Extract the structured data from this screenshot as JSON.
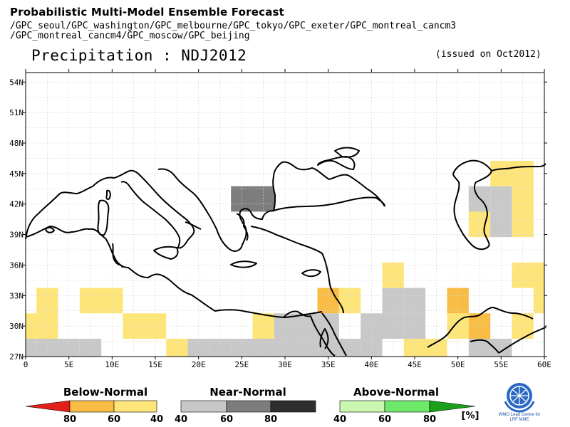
{
  "header": {
    "title": "Probabilistic Multi-Model Ensemble Forecast",
    "models_line1": "/GPC_seoul/GPC_washington/GPC_melbourne/GPC_tokyo/GPC_exeter/GPC_montreal_cancm3",
    "models_line2": "/GPC_montreal_cancm4/GPC_moscow/GPC_beijing",
    "variable": "Precipitation : NDJ2012",
    "issued": "(issued on Oct2012)"
  },
  "chart_data": {
    "type": "heatmap",
    "xlim": [
      0,
      60
    ],
    "ylim": [
      27,
      55
    ],
    "x_ticks": [
      "0",
      "5E",
      "10E",
      "15E",
      "20E",
      "25E",
      "30E",
      "35E",
      "40E",
      "45E",
      "50E",
      "55E",
      "60E"
    ],
    "y_ticks": [
      "27N",
      "30N",
      "33N",
      "36N",
      "39N",
      "42N",
      "45N",
      "48N",
      "51N",
      "54N"
    ],
    "grid": true,
    "cell_size_deg": 2.5,
    "cells": [
      {
        "lon": 0,
        "lat": 27.5,
        "cat": "near_40"
      },
      {
        "lon": 2.5,
        "lat": 27.5,
        "cat": "near_40"
      },
      {
        "lon": 5,
        "lat": 27.5,
        "cat": "near_40"
      },
      {
        "lon": 7.5,
        "lat": 27.5,
        "cat": "near_40"
      },
      {
        "lon": 0,
        "lat": 30,
        "cat": "below_40"
      },
      {
        "lon": 2.5,
        "lat": 30,
        "cat": "below_40"
      },
      {
        "lon": 2.5,
        "lat": 32.5,
        "cat": "below_40"
      },
      {
        "lon": 7.5,
        "lat": 32.5,
        "cat": "below_40"
      },
      {
        "lon": 10,
        "lat": 32.5,
        "cat": "below_40"
      },
      {
        "lon": 12.5,
        "lat": 30,
        "cat": "below_40"
      },
      {
        "lon": 15,
        "lat": 30,
        "cat": "below_40"
      },
      {
        "lon": 17.5,
        "lat": 27.5,
        "cat": "below_40"
      },
      {
        "lon": 20,
        "lat": 27.5,
        "cat": "near_40"
      },
      {
        "lon": 22.5,
        "lat": 27.5,
        "cat": "near_40"
      },
      {
        "lon": 25,
        "lat": 27.5,
        "cat": "near_40"
      },
      {
        "lon": 27.5,
        "lat": 27.5,
        "cat": "near_40"
      },
      {
        "lon": 30,
        "lat": 27.5,
        "cat": "near_40"
      },
      {
        "lon": 32.5,
        "lat": 27.5,
        "cat": "near_40"
      },
      {
        "lon": 35,
        "lat": 27.5,
        "cat": "near_40"
      },
      {
        "lon": 37.5,
        "lat": 27.5,
        "cat": "near_40"
      },
      {
        "lon": 40,
        "lat": 27.5,
        "cat": "near_40"
      },
      {
        "lon": 27.5,
        "lat": 30,
        "cat": "below_40"
      },
      {
        "lon": 30,
        "lat": 30,
        "cat": "near_40"
      },
      {
        "lon": 32.5,
        "lat": 30,
        "cat": "near_40"
      },
      {
        "lon": 35,
        "lat": 30,
        "cat": "near_40"
      },
      {
        "lon": 40,
        "lat": 30,
        "cat": "near_40"
      },
      {
        "lon": 42.5,
        "lat": 30,
        "cat": "near_40"
      },
      {
        "lon": 45,
        "lat": 30,
        "cat": "near_40"
      },
      {
        "lon": 35,
        "lat": 32.5,
        "cat": "below_60"
      },
      {
        "lon": 37.5,
        "lat": 32.5,
        "cat": "below_40"
      },
      {
        "lon": 42.5,
        "lat": 32.5,
        "cat": "near_40"
      },
      {
        "lon": 45,
        "lat": 32.5,
        "cat": "near_40"
      },
      {
        "lon": 42.5,
        "lat": 35,
        "cat": "below_40"
      },
      {
        "lon": 45,
        "lat": 27.5,
        "cat": "below_40"
      },
      {
        "lon": 47.5,
        "lat": 27.5,
        "cat": "below_40"
      },
      {
        "lon": 50,
        "lat": 30,
        "cat": "below_40"
      },
      {
        "lon": 50,
        "lat": 32.5,
        "cat": "below_60"
      },
      {
        "lon": 52.5,
        "lat": 30,
        "cat": "below_60"
      },
      {
        "lon": 52.5,
        "lat": 27.5,
        "cat": "near_40"
      },
      {
        "lon": 55,
        "lat": 27.5,
        "cat": "near_40"
      },
      {
        "lon": 57.5,
        "lat": 30,
        "cat": "below_40"
      },
      {
        "lon": 60,
        "lat": 32.5,
        "cat": "below_40"
      },
      {
        "lon": 57.5,
        "lat": 35,
        "cat": "below_40"
      },
      {
        "lon": 60,
        "lat": 35,
        "cat": "below_40"
      },
      {
        "lon": 52.5,
        "lat": 40,
        "cat": "below_40"
      },
      {
        "lon": 55,
        "lat": 40,
        "cat": "near_40"
      },
      {
        "lon": 57.5,
        "lat": 40,
        "cat": "below_40"
      },
      {
        "lon": 52.5,
        "lat": 42.5,
        "cat": "near_40"
      },
      {
        "lon": 55,
        "lat": 42.5,
        "cat": "near_40"
      },
      {
        "lon": 57.5,
        "lat": 42.5,
        "cat": "below_40"
      },
      {
        "lon": 55,
        "lat": 45,
        "cat": "below_40"
      },
      {
        "lon": 57.5,
        "lat": 45,
        "cat": "below_40"
      },
      {
        "lon": 25,
        "lat": 42.5,
        "cat": "near_60"
      },
      {
        "lon": 27.5,
        "lat": 42.5,
        "cat": "near_60"
      }
    ],
    "legend": {
      "below_title": "Below-Normal",
      "near_title": "Near-Normal",
      "above_title": "Above-Normal",
      "below_labels": [
        "80",
        "60",
        "40"
      ],
      "near_labels": [
        "40",
        "60",
        "80"
      ],
      "above_labels": [
        "40",
        "60",
        "80"
      ],
      "unit": "[%]"
    },
    "colors": {
      "below_40": "#fde57a",
      "below_60": "#f9bc45",
      "below_80": "#e32018",
      "near_40": "#c8c8c8",
      "near_60": "#7d7d7d",
      "near_80": "#2e2e2e",
      "above_40": "#c9f7b0",
      "above_60": "#6fe96a",
      "above_80": "#1ca01c"
    }
  },
  "logo": {
    "icon": "wmo-emblem-icon",
    "text_line1": "WMO Lead Centre for",
    "text_line2": "LRF MME"
  }
}
